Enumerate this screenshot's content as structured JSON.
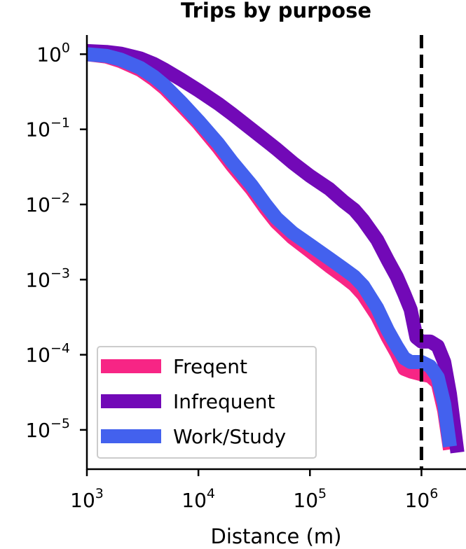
{
  "chart_data": {
    "type": "line",
    "title": "Trips by purpose",
    "xlabel": "Distance (m)",
    "ylabel": "",
    "x_scale": "log",
    "y_scale": "log",
    "xlim": [
      1000,
      2300000
    ],
    "ylim": [
      3e-06,
      1.8
    ],
    "x_ticks": [
      {
        "base": "10",
        "exp": "3",
        "value": 1000
      },
      {
        "base": "10",
        "exp": "4",
        "value": 10000
      },
      {
        "base": "10",
        "exp": "5",
        "value": 100000
      },
      {
        "base": "10",
        "exp": "6",
        "value": 1000000
      }
    ],
    "y_ticks": [
      {
        "base": "10",
        "exp": "0",
        "value": 1
      },
      {
        "base": "10",
        "exp": "−1",
        "value": 0.1
      },
      {
        "base": "10",
        "exp": "−2",
        "value": 0.01
      },
      {
        "base": "10",
        "exp": "−3",
        "value": 0.001
      },
      {
        "base": "10",
        "exp": "−4",
        "value": 0.0001
      },
      {
        "base": "10",
        "exp": "−5",
        "value": 1e-05
      }
    ],
    "reference_line": {
      "x": 1000000,
      "style": "dashed",
      "color": "#000000"
    },
    "grid": false,
    "legend_position": "lower-left",
    "series": [
      {
        "name": "Freqent",
        "color": "#f72585",
        "points": [
          [
            1000,
            1.0
          ],
          [
            1500,
            0.93
          ],
          [
            2000,
            0.81
          ],
          [
            3000,
            0.62
          ],
          [
            4000,
            0.46
          ],
          [
            5000,
            0.35
          ],
          [
            7000,
            0.21
          ],
          [
            10000,
            0.12
          ],
          [
            15000,
            0.058
          ],
          [
            20000,
            0.033
          ],
          [
            30000,
            0.016
          ],
          [
            40000,
            0.0088
          ],
          [
            50000,
            0.0058
          ],
          [
            70000,
            0.0036
          ],
          [
            100000,
            0.0024
          ],
          [
            150000,
            0.0015
          ],
          [
            200000,
            0.0011
          ],
          [
            250000,
            0.00085
          ],
          [
            300000,
            0.00063
          ],
          [
            400000,
            0.00033
          ],
          [
            500000,
            0.00017
          ],
          [
            600000,
            0.000105
          ],
          [
            700000,
            6.5e-05
          ],
          [
            800000,
            6e-05
          ],
          [
            1000000,
            5.5e-05
          ],
          [
            1200000,
            5.2e-05
          ],
          [
            1400000,
            4.2e-05
          ],
          [
            1600000,
            1.8e-05
          ],
          [
            1800000,
            5.5e-06
          ]
        ]
      },
      {
        "name": "Infrequent",
        "color": "#7209b7",
        "points": [
          [
            1000,
            1.1
          ],
          [
            1500,
            1.07
          ],
          [
            2000,
            1.02
          ],
          [
            3000,
            0.88
          ],
          [
            4000,
            0.74
          ],
          [
            5000,
            0.62
          ],
          [
            7000,
            0.46
          ],
          [
            10000,
            0.33
          ],
          [
            15000,
            0.22
          ],
          [
            20000,
            0.16
          ],
          [
            30000,
            0.1
          ],
          [
            50000,
            0.055
          ],
          [
            70000,
            0.036
          ],
          [
            100000,
            0.024
          ],
          [
            150000,
            0.016
          ],
          [
            200000,
            0.011
          ],
          [
            250000,
            0.0085
          ],
          [
            300000,
            0.0062
          ],
          [
            400000,
            0.0034
          ],
          [
            500000,
            0.0018
          ],
          [
            600000,
            0.0011
          ],
          [
            700000,
            0.00065
          ],
          [
            800000,
            0.0004
          ],
          [
            900000,
            0.00017
          ],
          [
            1000000,
            0.00015
          ],
          [
            1200000,
            0.00015
          ],
          [
            1400000,
            0.00013
          ],
          [
            1600000,
            8e-05
          ],
          [
            1800000,
            3e-05
          ],
          [
            2100000,
            5e-06
          ]
        ]
      },
      {
        "name": "Work/Study",
        "color": "#4361ee",
        "points": [
          [
            1000,
            1.0
          ],
          [
            1500,
            0.95
          ],
          [
            2000,
            0.85
          ],
          [
            3000,
            0.66
          ],
          [
            4000,
            0.5
          ],
          [
            5000,
            0.38
          ],
          [
            7000,
            0.23
          ],
          [
            10000,
            0.13
          ],
          [
            15000,
            0.065
          ],
          [
            20000,
            0.037
          ],
          [
            30000,
            0.018
          ],
          [
            40000,
            0.01
          ],
          [
            50000,
            0.0066
          ],
          [
            70000,
            0.0042
          ],
          [
            100000,
            0.0029
          ],
          [
            150000,
            0.0019
          ],
          [
            200000,
            0.0014
          ],
          [
            250000,
            0.0011
          ],
          [
            300000,
            0.00083
          ],
          [
            400000,
            0.00042
          ],
          [
            500000,
            0.00021
          ],
          [
            600000,
            0.00013
          ],
          [
            700000,
            9e-05
          ],
          [
            800000,
            8e-05
          ],
          [
            1000000,
            8e-05
          ],
          [
            1200000,
            7e-05
          ],
          [
            1400000,
            5e-05
          ],
          [
            1600000,
            2.2e-05
          ],
          [
            1800000,
            6e-06
          ]
        ]
      }
    ]
  }
}
